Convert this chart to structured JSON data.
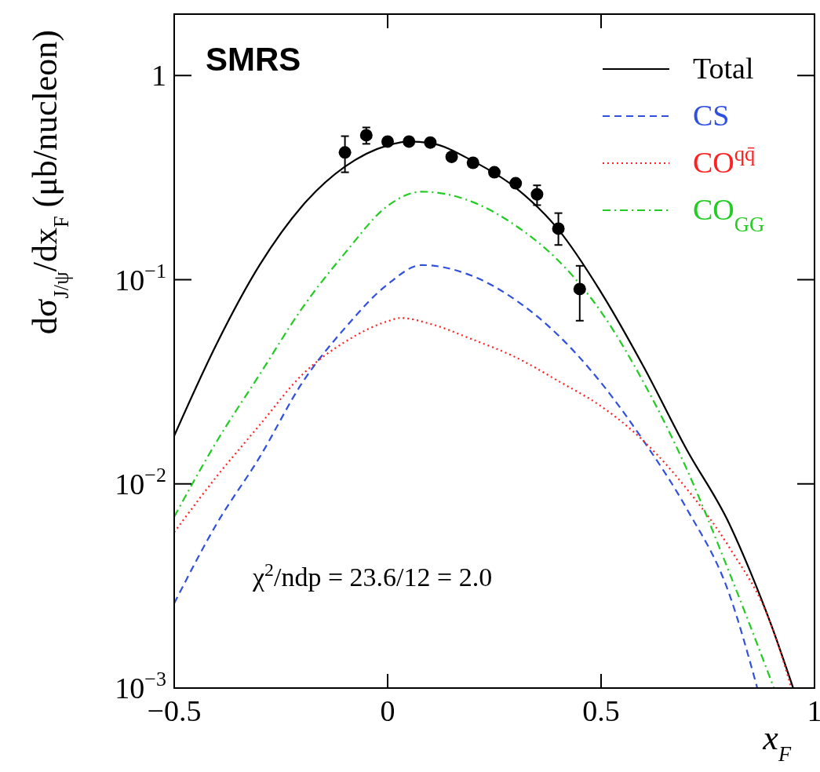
{
  "chart_data": {
    "type": "line",
    "title": "SMRS",
    "xlabel": "x$_{F}$",
    "ylabel": "dσ$_{J/ψ}$/dx$_{F}$ (μb/nucleon)",
    "log": "y",
    "xlim": [
      -0.5,
      1
    ],
    "ylim": [
      0.001,
      2
    ],
    "xticks": [
      {
        "value": -0.5,
        "label": "−0.5"
      },
      0,
      0.5,
      1
    ],
    "yticks": [
      {
        "value": 0.001,
        "label": "10$^{−3}$"
      },
      {
        "value": 0.01,
        "label": "10$^{−2}$"
      },
      {
        "value": 0.1,
        "label": "10$^{−1}$"
      },
      1
    ],
    "legend": "top right",
    "annotations": [
      "χ$^{2}$/ndp = 23.6/12 = 2.0"
    ],
    "series": [
      {
        "name": "Total",
        "type": "line",
        "line_style": "solid",
        "color": "#000000",
        "x": [
          -0.5,
          -0.4,
          -0.3,
          -0.2,
          -0.1,
          0,
          0.05,
          0.1,
          0.2,
          0.3,
          0.4,
          0.5,
          0.6,
          0.7,
          0.8,
          0.85,
          0.9,
          0.95
        ],
        "values": [
          0.0172,
          0.0488,
          0.118,
          0.23,
          0.358,
          0.455,
          0.475,
          0.467,
          0.381,
          0.282,
          0.176,
          0.0868,
          0.0374,
          0.0148,
          0.0064,
          0.0037,
          0.002,
          0.001
        ]
      },
      {
        "name": "CS",
        "type": "line",
        "line_style": "dashed",
        "color": "#3050e0",
        "x": [
          -0.5,
          -0.4,
          -0.3,
          -0.2,
          -0.1,
          0,
          0.08,
          0.2,
          0.3,
          0.4,
          0.5,
          0.6,
          0.7,
          0.8,
          0.866
        ],
        "values": [
          0.0026,
          0.0064,
          0.0135,
          0.0313,
          0.058,
          0.095,
          0.118,
          0.104,
          0.0795,
          0.0534,
          0.0313,
          0.0162,
          0.0076,
          0.0029,
          0.001
        ]
      },
      {
        "name": "CO$^{qq̄}$",
        "type": "line",
        "line_style": "dotted",
        "color": "#ff2020",
        "x": [
          -0.5,
          -0.4,
          -0.3,
          -0.2,
          -0.1,
          0,
          0.03,
          0.1,
          0.2,
          0.3,
          0.4,
          0.5,
          0.6,
          0.7,
          0.8,
          0.9,
          0.946
        ],
        "values": [
          0.0058,
          0.0109,
          0.0194,
          0.0343,
          0.0496,
          0.0626,
          0.065,
          0.0608,
          0.0509,
          0.0417,
          0.0319,
          0.024,
          0.0162,
          0.0095,
          0.0049,
          0.002,
          0.001
        ]
      },
      {
        "name": "CO$_{GG}$",
        "type": "line",
        "line_style": "dashdot",
        "color": "#22cc22",
        "x": [
          -0.5,
          -0.4,
          -0.3,
          -0.2,
          -0.1,
          0,
          0.08,
          0.2,
          0.3,
          0.4,
          0.5,
          0.6,
          0.7,
          0.8,
          0.85,
          0.905
        ],
        "values": [
          0.0069,
          0.0162,
          0.0343,
          0.0727,
          0.135,
          0.23,
          0.27,
          0.24,
          0.184,
          0.124,
          0.0696,
          0.0313,
          0.0119,
          0.0037,
          0.002,
          0.001
        ]
      },
      {
        "type": "scatter",
        "marker": "circle",
        "color": "#000000",
        "x": [
          -0.1,
          -0.05,
          0,
          0.05,
          0.1,
          0.15,
          0.2,
          0.25,
          0.3,
          0.35,
          0.4,
          0.45
        ],
        "values": [
          0.42,
          0.51,
          0.475,
          0.475,
          0.47,
          0.4,
          0.374,
          0.336,
          0.297,
          0.262,
          0.178,
          0.09
        ],
        "errors": [
          [
            0.336,
            0.505
          ],
          [
            0.463,
            0.557
          ],
          [
            0.455,
            0.495
          ],
          [
            0.455,
            0.495
          ],
          [
            0.45,
            0.49
          ],
          [
            0.385,
            0.415
          ],
          [
            0.36,
            0.39
          ],
          [
            0.323,
            0.35
          ],
          [
            0.285,
            0.31
          ],
          [
            0.232,
            0.29
          ],
          [
            0.148,
            0.212
          ],
          [
            0.063,
            0.117
          ]
        ]
      }
    ]
  }
}
